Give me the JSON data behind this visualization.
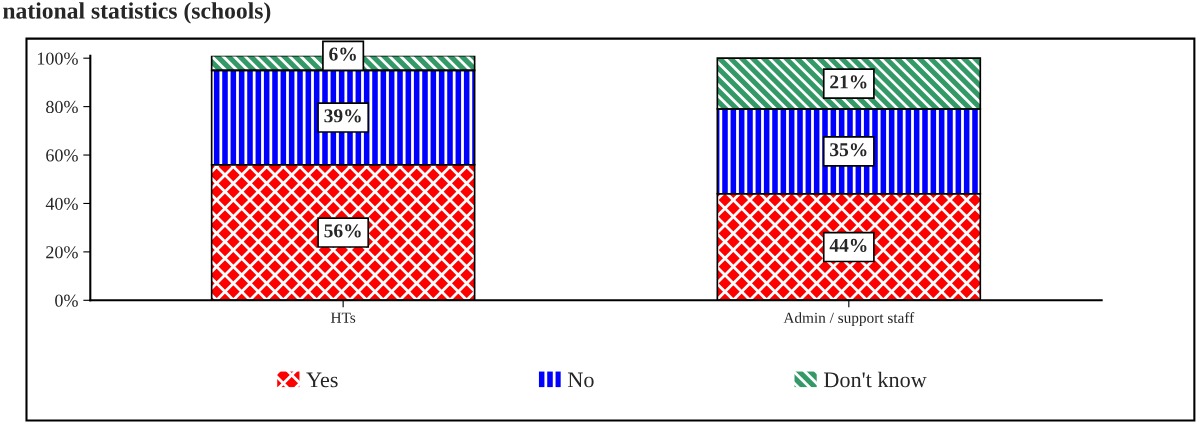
{
  "chart_data": {
    "type": "bar",
    "title": "national statistics (schools)",
    "categories": [
      "HTs",
      "Admin / support staff"
    ],
    "stacked": true,
    "series": [
      {
        "name": "Yes",
        "color": "#ff0000",
        "values": [
          56,
          44
        ]
      },
      {
        "name": "No",
        "color": "#0000ff",
        "values": [
          39,
          35
        ]
      },
      {
        "name": "Don't know",
        "color": "#339966",
        "values": [
          6,
          21
        ]
      }
    ],
    "ylim": [
      0,
      101
    ],
    "yticks": [
      {
        "value": 0,
        "label": "0%"
      },
      {
        "value": 20,
        "label": "20%"
      },
      {
        "value": 40,
        "label": "40%"
      },
      {
        "value": 60,
        "label": "60%"
      },
      {
        "value": 80,
        "label": "80%"
      },
      {
        "value": 100,
        "label": "100%"
      }
    ],
    "value_labels": [
      [
        "56%",
        "44%"
      ],
      [
        "39%",
        "35%"
      ],
      [
        "6%",
        "21%"
      ]
    ],
    "legend": "bottom",
    "grid": false
  }
}
